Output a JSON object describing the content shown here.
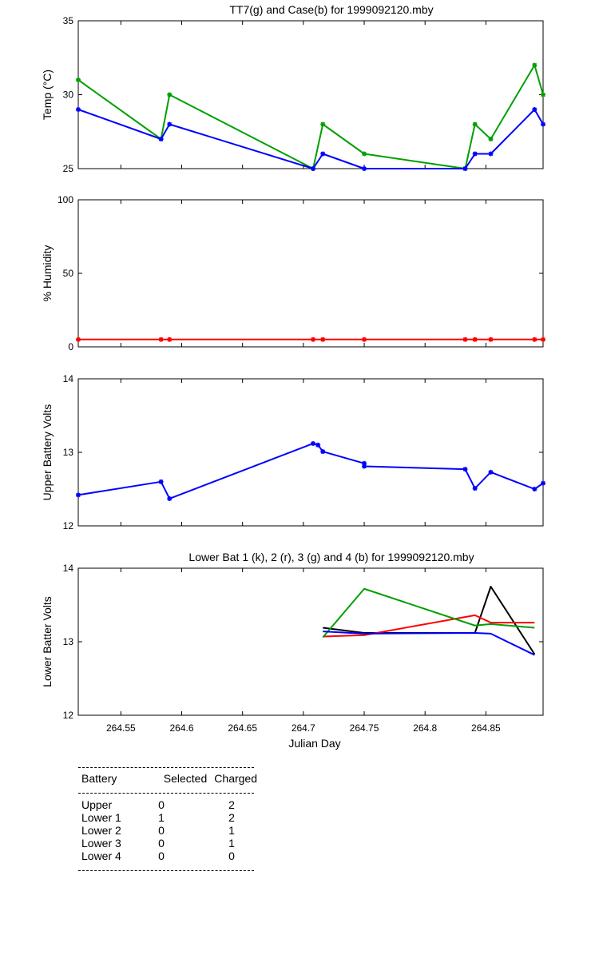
{
  "chart_data": [
    {
      "type": "line",
      "title": "TT7(g) and Case(b) for 1999092120.mby",
      "xlabel": "",
      "ylabel": "Temp  (°C)",
      "xlim": [
        264.515,
        264.897
      ],
      "ylim": [
        25,
        35
      ],
      "yticks": [
        25,
        30,
        35
      ],
      "grid": false,
      "series": [
        {
          "color": "#00a000",
          "marker": "*",
          "x": [
            264.515,
            264.583,
            264.59,
            264.708,
            264.716,
            264.75,
            264.833,
            264.841,
            264.854,
            264.89,
            264.897
          ],
          "y": [
            31,
            27,
            30,
            25,
            28,
            26,
            25,
            28,
            27,
            32,
            30
          ]
        },
        {
          "color": "#0000ff",
          "marker": "*",
          "x": [
            264.515,
            264.583,
            264.59,
            264.708,
            264.716,
            264.75,
            264.833,
            264.841,
            264.854,
            264.89,
            264.897
          ],
          "y": [
            29,
            27,
            28,
            25,
            26,
            25,
            25,
            26,
            26,
            29,
            28
          ]
        }
      ]
    },
    {
      "type": "line",
      "title": "",
      "xlabel": "",
      "ylabel": "% Humidity",
      "xlim": [
        264.515,
        264.897
      ],
      "ylim": [
        0,
        100
      ],
      "yticks": [
        0,
        50,
        100
      ],
      "grid": false,
      "series": [
        {
          "color": "#ff0000",
          "marker": "*",
          "x": [
            264.515,
            264.583,
            264.59,
            264.708,
            264.716,
            264.75,
            264.833,
            264.841,
            264.854,
            264.89,
            264.897
          ],
          "y": [
            5,
            5,
            5,
            5,
            5,
            5,
            5,
            5,
            5,
            5,
            5
          ]
        }
      ]
    },
    {
      "type": "line",
      "title": "",
      "xlabel": "",
      "ylabel": "Upper Battery Volts",
      "xlim": [
        264.515,
        264.897
      ],
      "ylim": [
        12,
        14
      ],
      "yticks": [
        12,
        13,
        14
      ],
      "grid": false,
      "series": [
        {
          "color": "#0000ff",
          "marker": "*",
          "x": [
            264.515,
            264.583,
            264.59,
            264.708,
            264.712,
            264.716,
            264.75,
            264.75,
            264.833,
            264.841,
            264.854,
            264.89,
            264.897
          ],
          "y": [
            12.42,
            12.6,
            12.37,
            13.12,
            13.1,
            13.01,
            12.85,
            12.81,
            12.77,
            12.51,
            12.73,
            12.5,
            12.58
          ]
        }
      ]
    },
    {
      "type": "line",
      "title": "Lower Bat 1 (k), 2 (r), 3 (g) and 4 (b) for 1999092120.mby",
      "xlabel": "Julian Day",
      "ylabel": "Lower Batter Volts",
      "xlim": [
        264.515,
        264.897
      ],
      "ylim": [
        12,
        14
      ],
      "yticks": [
        12,
        13,
        14
      ],
      "xticks": [
        "264.55",
        "264.6",
        "264.65",
        "264.7",
        "264.75",
        "264.8",
        "264.85"
      ],
      "grid": false,
      "series": [
        {
          "color": "#000000",
          "x": [
            264.716,
            264.75,
            264.841,
            264.854,
            264.89
          ],
          "y": [
            13.19,
            13.12,
            13.12,
            13.75,
            12.83
          ]
        },
        {
          "color": "#ff0000",
          "x": [
            264.716,
            264.75,
            264.841,
            264.854,
            264.89
          ],
          "y": [
            13.07,
            13.09,
            13.36,
            13.26,
            13.26
          ]
        },
        {
          "color": "#00a000",
          "x": [
            264.716,
            264.75,
            264.841,
            264.854,
            264.89
          ],
          "y": [
            13.06,
            13.72,
            13.22,
            13.24,
            13.19
          ]
        },
        {
          "color": "#0000ff",
          "x": [
            264.716,
            264.75,
            264.841,
            264.854,
            264.89
          ],
          "y": [
            13.14,
            13.11,
            13.12,
            13.11,
            12.82
          ]
        }
      ]
    }
  ],
  "battery_table": {
    "headers": [
      "Battery",
      "Selected",
      "Charged"
    ],
    "rows": [
      {
        "battery": "Upper",
        "selected": "0",
        "charged": "2"
      },
      {
        "battery": "Lower 1",
        "selected": "1",
        "charged": "2"
      },
      {
        "battery": "Lower 2",
        "selected": "0",
        "charged": "1"
      },
      {
        "battery": "Lower 3",
        "selected": "0",
        "charged": "1"
      },
      {
        "battery": "Lower 4",
        "selected": "0",
        "charged": "0"
      }
    ]
  }
}
